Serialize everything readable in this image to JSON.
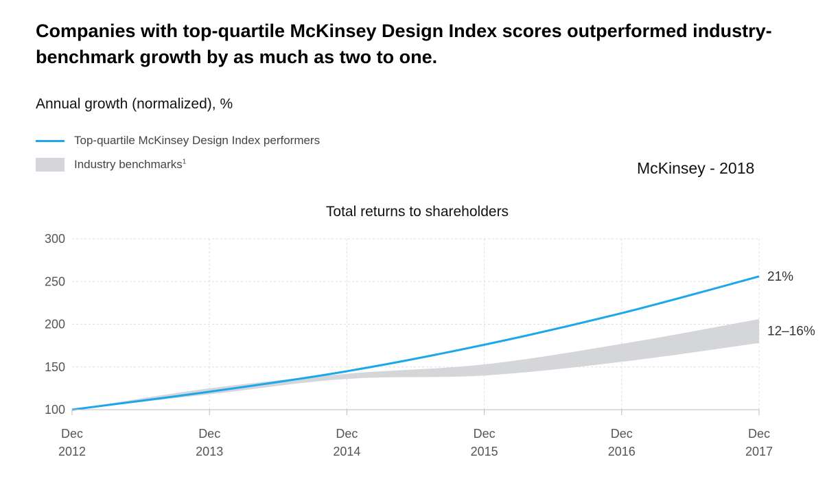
{
  "header": {
    "title": "Companies with top-quartile McKinsey Design Index scores outperformed industry-benchmark growth by as much as two to one.",
    "subtitle": "Annual growth (normalized), %",
    "source_note": "McKinsey - 2018"
  },
  "legend": {
    "line_label": "Top-quartile McKinsey Design Index performers",
    "band_label": "Industry benchmarks",
    "band_footnote": "1"
  },
  "colors": {
    "line": "#1aa7ec",
    "band": "#d4d6d9",
    "grid": "#dddddd",
    "axis": "#bbbbbb"
  },
  "chart_data": {
    "type": "line",
    "title": "Total returns to shareholders",
    "x": [
      "Dec 2012",
      "Dec 2013",
      "Dec 2014",
      "Dec 2015",
      "Dec 2016",
      "Dec 2017"
    ],
    "x_tick_labels": [
      [
        "Dec",
        "2012"
      ],
      [
        "Dec",
        "2013"
      ],
      [
        "Dec",
        "2014"
      ],
      [
        "Dec",
        "2015"
      ],
      [
        "Dec",
        "2016"
      ],
      [
        "Dec",
        "2017"
      ]
    ],
    "ylim": [
      100,
      300
    ],
    "yticks": [
      100,
      150,
      200,
      250,
      300
    ],
    "grid": true,
    "series": [
      {
        "name": "Top-quartile McKinsey Design Index performers",
        "kind": "line",
        "values": [
          100,
          121,
          145,
          176,
          213,
          256
        ],
        "end_label": "21%"
      },
      {
        "name": "Industry benchmarks",
        "kind": "band",
        "upper": [
          100,
          125,
          142,
          153,
          177,
          206
        ],
        "lower": [
          100,
          118,
          136,
          140,
          156,
          178
        ],
        "end_label": "12–16%"
      }
    ]
  }
}
